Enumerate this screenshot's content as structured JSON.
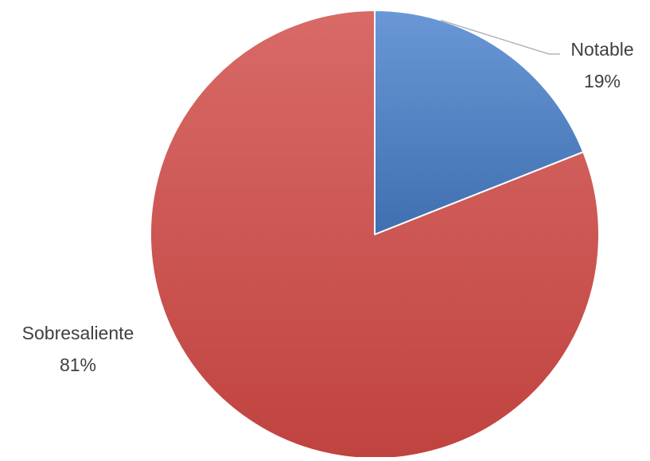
{
  "chart_data": {
    "type": "pie",
    "title": "",
    "legend": "none",
    "slices": [
      {
        "label": "Notable",
        "value": 19,
        "percent_label": "19%",
        "color": "#4f81bd"
      },
      {
        "label": "Sobresaliente",
        "value": 81,
        "percent_label": "81%",
        "color": "#c0504d"
      }
    ]
  }
}
